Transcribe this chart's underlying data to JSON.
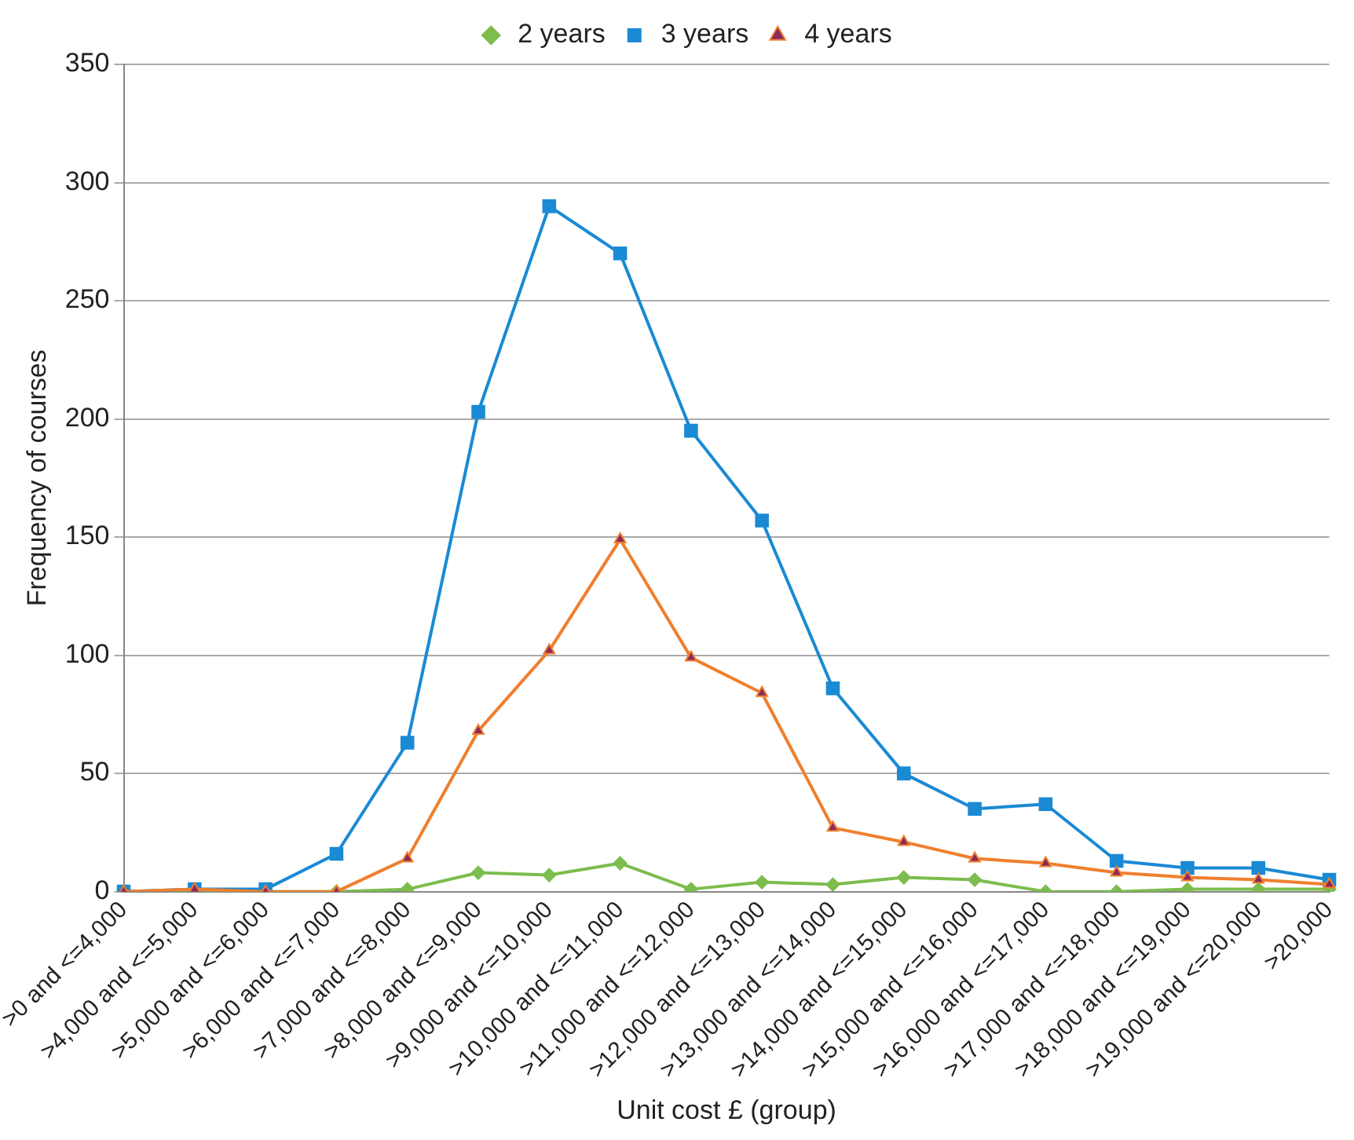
{
  "chart_data": {
    "type": "line",
    "xlabel": "Unit cost £ (group)",
    "ylabel": "Frequency of courses",
    "categories": [
      ">0 and <=4,000",
      ">4,000 and <=5,000",
      ">5,000 and <=6,000",
      ">6,000 and <=7,000",
      ">7,000 and <=8,000",
      ">8,000 and <=9,000",
      ">9,000 and <=10,000",
      ">10,000 and <=11,000",
      ">11,000 and <=12,000",
      ">12,000 and <=13,000",
      ">13,000 and <=14,000",
      ">14,000 and <=15,000",
      ">15,000 and <=16,000",
      ">16,000 and <=17,000",
      ">17,000 and <=18,000",
      ">18,000 and <=19,000",
      ">19,000 and <=20,000",
      ">20,000"
    ],
    "series": [
      {
        "name": "2 years",
        "color": "#7cbd4e",
        "marker": "diamond",
        "values": [
          0,
          0,
          0,
          0,
          1,
          8,
          7,
          12,
          1,
          4,
          3,
          6,
          5,
          0,
          0,
          1,
          1,
          1
        ]
      },
      {
        "name": "3 years",
        "color": "#1a8ad4",
        "marker": "square",
        "values": [
          0,
          1,
          1,
          16,
          63,
          203,
          290,
          270,
          195,
          157,
          86,
          50,
          35,
          37,
          13,
          10,
          10,
          5
        ]
      },
      {
        "name": "4 years",
        "color": "#f07f2e",
        "marker": "triangle",
        "values": [
          0,
          1,
          0,
          0,
          14,
          68,
          102,
          149,
          99,
          84,
          27,
          21,
          14,
          12,
          8,
          6,
          5,
          3
        ]
      }
    ],
    "ylim": [
      0,
      350
    ],
    "yticks": [
      0,
      50,
      100,
      150,
      200,
      250,
      300,
      350
    ],
    "grid": "y",
    "legend": "top"
  }
}
